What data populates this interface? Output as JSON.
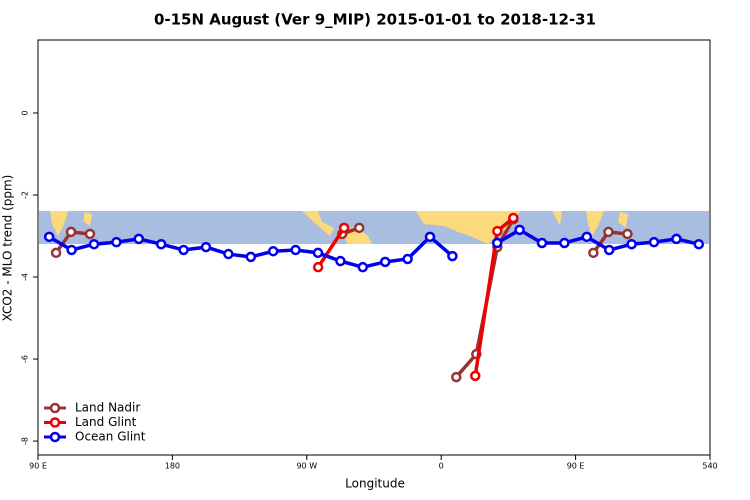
{
  "chart_data": {
    "type": "line",
    "title": "0-15N August (Ver 9_MIP)   2015-01-01 to 2018-12-31",
    "x_label": "Longitude",
    "y_label": "XCO2 - MLO trend (ppm)",
    "xlim": [
      90,
      540
    ],
    "ylim": [
      -8.34,
      1.78
    ],
    "xticks": [
      {
        "value": 90,
        "label": "90 E"
      },
      180,
      {
        "value": 270,
        "label": "90 W"
      },
      {
        "value": 360,
        "label": "0"
      },
      {
        "value": 450,
        "label": "90 E"
      },
      540
    ],
    "yticks": [
      -8,
      -6,
      -4,
      -2,
      0
    ],
    "legend": "lower left",
    "series": [
      {
        "name": "Land Nadir",
        "color": "#993333",
        "x": [
          102.1,
          112.1,
          124.8,
          null,
          293.7,
          305.1,
          null,
          370.1,
          383.5,
          397.6,
          408.3,
          null,
          461.9,
          472,
          484.7
        ],
        "values": [
          -3.41,
          -2.9,
          -2.95,
          null,
          -2.95,
          -2.8,
          null,
          -6.44,
          -5.88,
          -3.27,
          -2.59,
          null,
          -3.41,
          -2.9,
          -2.95
        ]
      },
      {
        "name": "Land Glint",
        "color": "#ee0000",
        "x": [
          277.6,
          295.0,
          null,
          382.8,
          397.6,
          408.3
        ],
        "values": [
          -3.76,
          -2.8,
          null,
          -6.41,
          -2.88,
          -2.56
        ]
      },
      {
        "name": "Ocean Glint",
        "color": "#0000ee",
        "x": [
          97.5,
          112.5,
          127.5,
          142.5,
          157.5,
          172.5,
          187.5,
          202.5,
          217.5,
          232.5,
          247.5,
          262.5,
          277.5,
          292.5,
          307.5,
          322.5,
          337.5,
          352.5,
          367.5,
          null,
          397.5,
          412.5,
          427.5,
          442.5,
          457.5,
          472.5,
          487.5,
          502.5,
          517.5,
          532.5
        ],
        "values": [
          -3.02,
          -3.34,
          -3.2,
          -3.15,
          -3.07,
          -3.2,
          -3.34,
          -3.27,
          -3.44,
          -3.51,
          -3.37,
          -3.34,
          -3.41,
          -3.61,
          -3.76,
          -3.63,
          -3.56,
          -3.02,
          -3.49,
          null,
          -3.17,
          -2.85,
          -3.17,
          -3.17,
          -3.02,
          -3.34,
          -3.2,
          -3.15,
          -3.07,
          -3.2
        ]
      }
    ]
  }
}
